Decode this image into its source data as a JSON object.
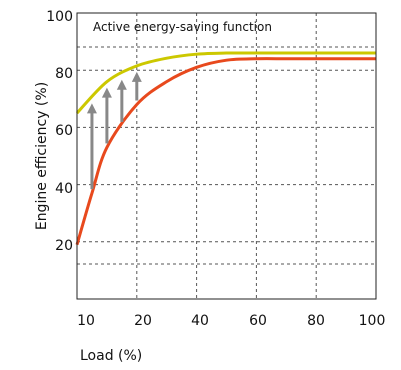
{
  "chart_data": {
    "type": "line",
    "title": "",
    "annotation": "Active energy-saving function",
    "xlabel": "Load (%)",
    "ylabel": "Engine efficiency (%)",
    "x_tick_labels": [
      "10",
      "20",
      "40",
      "60",
      "80",
      "100"
    ],
    "y_tick_labels": [
      "20",
      "40",
      "60",
      "80",
      "100"
    ],
    "ylim": [
      0,
      100
    ],
    "grid": true,
    "series": [
      {
        "name": "",
        "color": "#ccc800",
        "x": [
          0,
          10,
          20,
          30,
          40,
          50,
          60,
          70,
          80,
          90,
          100
        ],
        "y": [
          65,
          76,
          81.5,
          84.2,
          85.6,
          86,
          86,
          86,
          86,
          86,
          86
        ]
      },
      {
        "name": "",
        "color": "#e8491d",
        "x": [
          0,
          5,
          10,
          20,
          30,
          40,
          50,
          60,
          70,
          80,
          90,
          100
        ],
        "y": [
          19,
          37,
          53,
          68,
          76,
          81,
          83.5,
          84,
          84,
          84,
          84,
          84
        ]
      }
    ],
    "arrows": {
      "color": "#888888",
      "x": [
        5,
        10,
        15,
        20
      ]
    }
  }
}
